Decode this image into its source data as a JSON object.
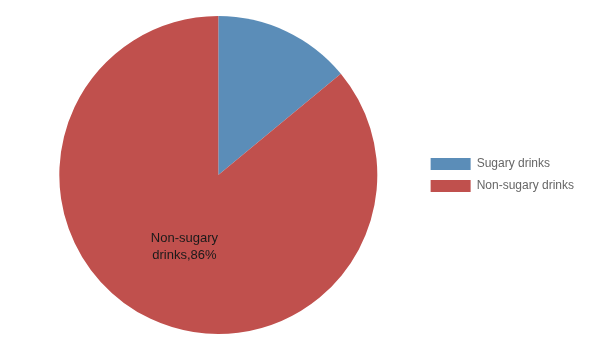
{
  "chart_data": {
    "type": "pie",
    "categories": [
      "Sugary drinks",
      "Non-sugary drinks"
    ],
    "values": [
      14,
      86
    ],
    "colors": [
      "#5b8db8",
      "#c0504d"
    ],
    "legend": "right",
    "annotations": [
      {
        "text": "Non-sugary\ndrinks,86%",
        "category": "Non-sugary drinks"
      }
    ]
  }
}
